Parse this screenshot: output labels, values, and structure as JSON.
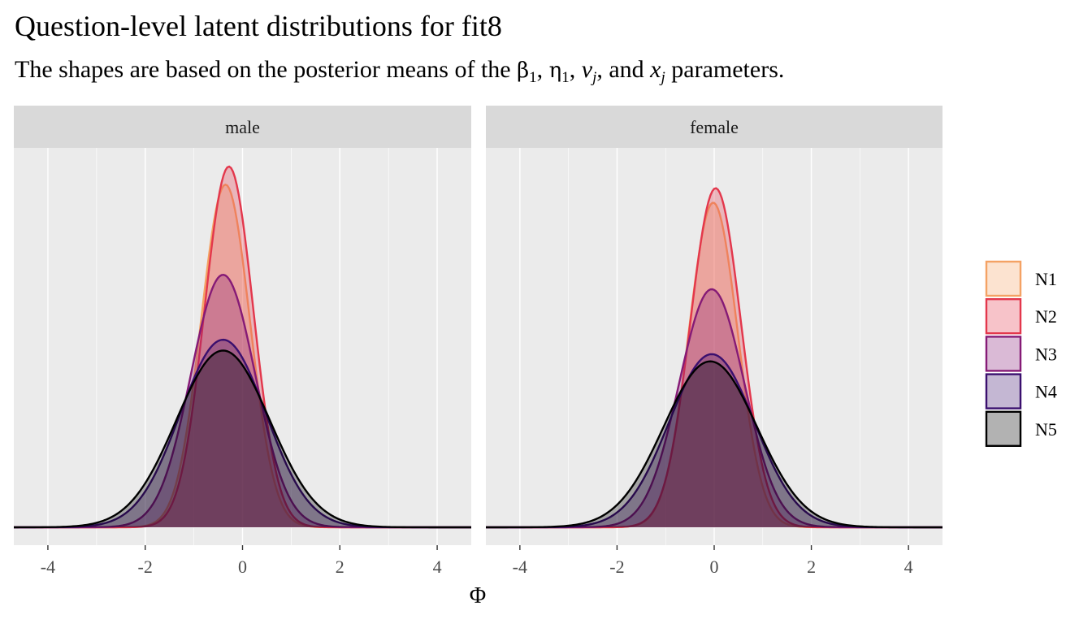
{
  "chart_data": {
    "type": "area",
    "title": "Question-level latent distributions for fit8",
    "subtitle": {
      "prefix": "The shapes are based on the posterior means of the ",
      "beta": "β",
      "beta_sub": "1",
      "eta": "η",
      "eta_sub": "1",
      "v": "v",
      "v_sub": "j",
      "and_text": ", and ",
      "x": "x",
      "x_sub": "j",
      "suffix": " parameters.",
      "sep": ", "
    },
    "xlabel": "Φ",
    "ylabel": "",
    "xlim": [
      -4.7,
      4.7
    ],
    "x_ticks": [
      -4,
      -2,
      0,
      2,
      4
    ],
    "grid": true,
    "legend_position": "right",
    "facets": [
      {
        "label": "male",
        "series": [
          {
            "name": "N1",
            "mean": -0.35,
            "sd": 0.5,
            "peak": 0.95
          },
          {
            "name": "N2",
            "mean": -0.28,
            "sd": 0.5,
            "peak": 1.0
          },
          {
            "name": "N3",
            "mean": -0.4,
            "sd": 0.66,
            "peak": 0.7
          },
          {
            "name": "N4",
            "mean": -0.4,
            "sd": 0.88,
            "peak": 0.52
          },
          {
            "name": "N5",
            "mean": -0.4,
            "sd": 0.96,
            "peak": 0.49
          }
        ]
      },
      {
        "label": "female",
        "series": [
          {
            "name": "N1",
            "mean": -0.02,
            "sd": 0.5,
            "peak": 0.9
          },
          {
            "name": "N2",
            "mean": 0.03,
            "sd": 0.52,
            "peak": 0.94
          },
          {
            "name": "N3",
            "mean": -0.05,
            "sd": 0.67,
            "peak": 0.66
          },
          {
            "name": "N4",
            "mean": -0.05,
            "sd": 0.88,
            "peak": 0.48
          },
          {
            "name": "N5",
            "mean": -0.08,
            "sd": 0.96,
            "peak": 0.46
          }
        ]
      }
    ],
    "legend": [
      {
        "name": "N1",
        "color": "#F4A264"
      },
      {
        "name": "N2",
        "color": "#E3374C"
      },
      {
        "name": "N3",
        "color": "#851A76"
      },
      {
        "name": "N4",
        "color": "#3A0F6E"
      },
      {
        "name": "N5",
        "color": "#000000"
      }
    ]
  }
}
